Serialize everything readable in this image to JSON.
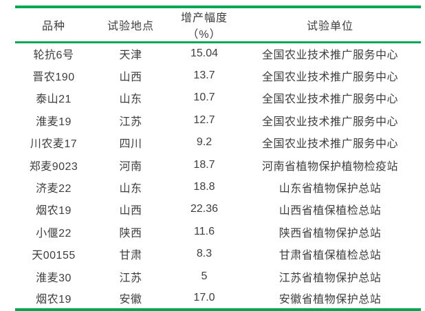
{
  "colors": {
    "accent_green": "#00a651",
    "text": "#3d3d3d"
  },
  "table": {
    "headers": [
      "品种",
      "试验地点",
      "增产幅度（%）",
      "试验单位"
    ],
    "rows": [
      {
        "variety": "轮抗6号",
        "location": "天津",
        "increase": "15.04",
        "unit": "全国农业技术推广服务中心"
      },
      {
        "variety": "晋农190",
        "location": "山西",
        "increase": "13.7",
        "unit": "全国农业技术推广服务中心"
      },
      {
        "variety": "泰山21",
        "location": "山东",
        "increase": "10.7",
        "unit": "全国农业技术推广服务中心"
      },
      {
        "variety": "淮麦19",
        "location": "江苏",
        "increase": "12.7",
        "unit": "全国农业技术推广服务中心"
      },
      {
        "variety": "川农麦17",
        "location": "四川",
        "increase": "9.2",
        "unit": "全国农业技术推广服务中心"
      },
      {
        "variety": "郑麦9023",
        "location": "河南",
        "increase": "18.7",
        "unit": "河南省植物保护植物检疫站"
      },
      {
        "variety": "济麦22",
        "location": "山东",
        "increase": "18.8",
        "unit": "山东省植物保护总站"
      },
      {
        "variety": "烟农19",
        "location": "山西",
        "increase": "22.36",
        "unit": "山西省植保植检总站"
      },
      {
        "variety": "小偃22",
        "location": "陕西",
        "increase": "11.6",
        "unit": "陕西省植物保护总站"
      },
      {
        "variety": "天00155",
        "location": "甘肃",
        "increase": "8.3",
        "unit": "甘肃省植保植检总站"
      },
      {
        "variety": "淮麦30",
        "location": "江苏",
        "increase": "5",
        "unit": "江苏省植物保护总站"
      },
      {
        "variety": "烟农19",
        "location": "安徽",
        "increase": "17.0",
        "unit": "安徽省植物保护总站"
      }
    ]
  },
  "chart_data": {
    "type": "table",
    "title": "",
    "columns": [
      "品种",
      "试验地点",
      "增产幅度（%）",
      "试验单位"
    ],
    "rows": [
      [
        "轮抗6号",
        "天津",
        15.04,
        "全国农业技术推广服务中心"
      ],
      [
        "晋农190",
        "山西",
        13.7,
        "全国农业技术推广服务中心"
      ],
      [
        "泰山21",
        "山东",
        10.7,
        "全国农业技术推广服务中心"
      ],
      [
        "淮麦19",
        "江苏",
        12.7,
        "全国农业技术推广服务中心"
      ],
      [
        "川农麦17",
        "四川",
        9.2,
        "全国农业技术推广服务中心"
      ],
      [
        "郑麦9023",
        "河南",
        18.7,
        "河南省植物保护植物检疫站"
      ],
      [
        "济麦22",
        "山东",
        18.8,
        "山东省植物保护总站"
      ],
      [
        "烟农19",
        "山西",
        22.36,
        "山西省植保植检总站"
      ],
      [
        "小偃22",
        "陕西",
        11.6,
        "陕西省植物保护总站"
      ],
      [
        "天00155",
        "甘肃",
        8.3,
        "甘肃省植保植检总站"
      ],
      [
        "淮麦30",
        "江苏",
        5,
        "江苏省植物保护总站"
      ],
      [
        "烟农19",
        "安徽",
        17.0,
        "安徽省植物保护总站"
      ]
    ],
    "layout_hints": {
      "style": "three-line table (top rule, header rule, bottom rule)",
      "rule_color": "#00a651",
      "grid": "off",
      "alignment": "all cells centered"
    }
  }
}
